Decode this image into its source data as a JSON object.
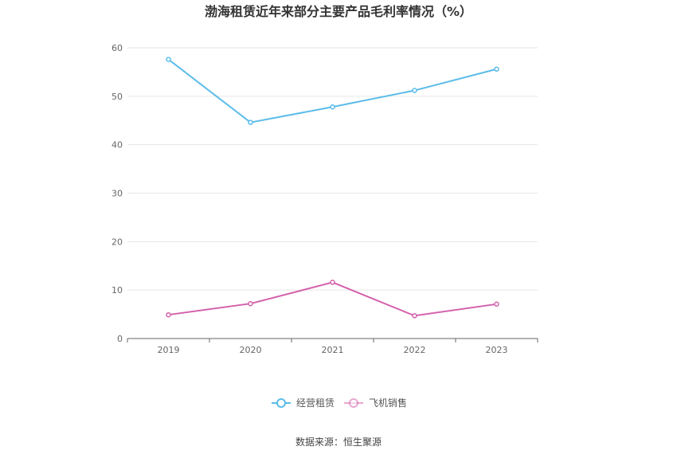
{
  "chart_data": {
    "type": "line",
    "title": "渤海租赁近年来部分主要产品毛利率情况（%）",
    "categories": [
      "2019",
      "2020",
      "2021",
      "2022",
      "2023"
    ],
    "ylim": [
      0,
      60
    ],
    "yticks": [
      0,
      10,
      20,
      30,
      40,
      50,
      60
    ],
    "grid": true,
    "legend_position": "bottom-center",
    "series": [
      {
        "name": "经营租赁",
        "color": "#5bbcea",
        "values": [
          57.6,
          44.6,
          47.8,
          51.2,
          55.6
        ]
      },
      {
        "name": "飞机销售",
        "color": "#d462ad",
        "values": [
          4.9,
          7.2,
          11.6,
          4.7,
          7.1
        ]
      }
    ]
  },
  "source": "数据来源：恒生聚源"
}
